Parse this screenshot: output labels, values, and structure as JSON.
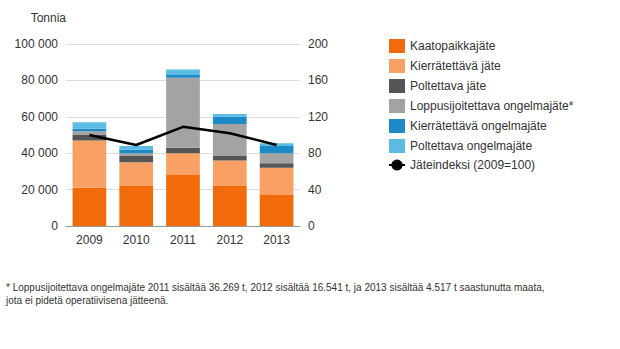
{
  "chart_data": {
    "type": "bar",
    "stacked": true,
    "ylabel": "Tonnia",
    "categories": [
      "2009",
      "2010",
      "2011",
      "2012",
      "2013"
    ],
    "series": [
      {
        "name": "Kaatopaikkajäte",
        "color": "#f26b0a",
        "values": [
          21000,
          22000,
          28000,
          22000,
          17000
        ]
      },
      {
        "name": "Kierrätettävä jäte",
        "color": "#f9a164",
        "values": [
          26000,
          13000,
          12000,
          14000,
          15000
        ]
      },
      {
        "name": "Poltettava jäte",
        "color": "#555555",
        "values": [
          3000,
          3500,
          3000,
          2500,
          2500
        ]
      },
      {
        "name": "Loppusijoitettava ongelmajäte*",
        "color": "#a3a3a3",
        "values": [
          2000,
          1500,
          38500,
          17500,
          5500
        ]
      },
      {
        "name": "Kierrätettävä ongelmajäte",
        "color": "#1b8ac6",
        "values": [
          1500,
          2000,
          1500,
          4000,
          4000
        ]
      },
      {
        "name": "Poltettava ongelmajäte",
        "color": "#5bbbe2",
        "values": [
          3500,
          2000,
          3000,
          1500,
          1500
        ]
      },
      {
        "name": "Jäteindeksi (2009=100)",
        "color": "#000000",
        "type": "line",
        "axis": "y2",
        "values": [
          100,
          89,
          109,
          102,
          89
        ]
      }
    ],
    "ylim": [
      0,
      100000
    ],
    "yticks": [
      0,
      {
        "value": 20000,
        "label": "20 000"
      },
      {
        "value": 40000,
        "label": "40 000"
      },
      {
        "value": 60000,
        "label": "60 000"
      },
      {
        "value": 80000,
        "label": "80 000"
      },
      {
        "value": 100000,
        "label": "100 000"
      }
    ],
    "y2lim": [
      0,
      200
    ],
    "y2ticks": [
      0,
      40,
      80,
      120,
      160,
      200
    ],
    "grid": true,
    "legend": "right",
    "annotations": [
      "* Loppusijoitettava ongelmajäte 2011 sisältää 36.269 t, 2012 sisältää 16.541 t, ja 2013 sisältää 4.517 t saastunutta maata, jota ei pidetä operatiivisena jätteenä."
    ]
  }
}
